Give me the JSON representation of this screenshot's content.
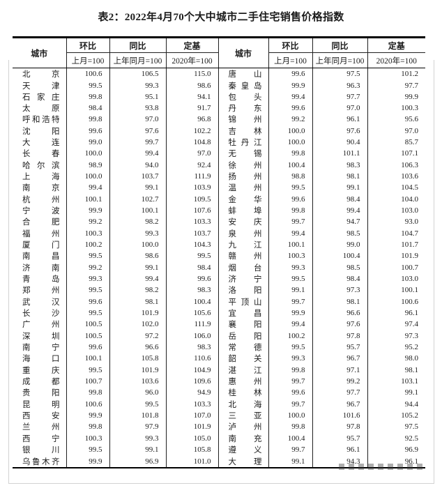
{
  "title": "表2：2022年4月70个大中城市二手住宅销售价格指数",
  "colors": {
    "border_strong": "#000000",
    "border_line": "#1f1f1f",
    "text": "#1b1b1b",
    "frame": "#d2d2d2"
  },
  "table": {
    "header": {
      "city_label": "城市",
      "columns": [
        {
          "group": "环比",
          "sub": "上月=100"
        },
        {
          "group": "同比",
          "sub": "上年同月=100"
        },
        {
          "group": "定基",
          "sub": "2020年=100"
        }
      ]
    },
    "left_rows": [
      {
        "city": "北京",
        "mom": "100.6",
        "yoy": "106.5",
        "base": "115.0"
      },
      {
        "city": "天津",
        "mom": "99.5",
        "yoy": "99.3",
        "base": "98.6"
      },
      {
        "city": "石家庄",
        "mom": "99.8",
        "yoy": "95.1",
        "base": "94.1"
      },
      {
        "city": "太原",
        "mom": "98.4",
        "yoy": "93.8",
        "base": "91.7"
      },
      {
        "city": "呼和浩特",
        "mom": "99.8",
        "yoy": "97.0",
        "base": "96.8"
      },
      {
        "city": "沈阳",
        "mom": "99.6",
        "yoy": "97.6",
        "base": "102.2"
      },
      {
        "city": "大连",
        "mom": "99.0",
        "yoy": "99.7",
        "base": "104.8"
      },
      {
        "city": "长春",
        "mom": "100.0",
        "yoy": "99.4",
        "base": "97.0"
      },
      {
        "city": "哈尔滨",
        "mom": "98.9",
        "yoy": "94.0",
        "base": "92.4"
      },
      {
        "city": "上海",
        "mom": "100.0",
        "yoy": "103.7",
        "base": "111.9"
      },
      {
        "city": "南京",
        "mom": "99.4",
        "yoy": "99.1",
        "base": "103.9"
      },
      {
        "city": "杭州",
        "mom": "100.1",
        "yoy": "102.7",
        "base": "109.5"
      },
      {
        "city": "宁波",
        "mom": "99.9",
        "yoy": "100.1",
        "base": "107.6"
      },
      {
        "city": "合肥",
        "mom": "99.2",
        "yoy": "98.2",
        "base": "103.3"
      },
      {
        "city": "福州",
        "mom": "100.3",
        "yoy": "99.3",
        "base": "103.7"
      },
      {
        "city": "厦门",
        "mom": "100.2",
        "yoy": "100.0",
        "base": "104.3"
      },
      {
        "city": "南昌",
        "mom": "99.5",
        "yoy": "98.6",
        "base": "99.5"
      },
      {
        "city": "济南",
        "mom": "99.2",
        "yoy": "99.1",
        "base": "98.4"
      },
      {
        "city": "青岛",
        "mom": "99.3",
        "yoy": "99.4",
        "base": "99.6"
      },
      {
        "city": "郑州",
        "mom": "99.5",
        "yoy": "98.2",
        "base": "98.3"
      },
      {
        "city": "武汉",
        "mom": "99.6",
        "yoy": "98.1",
        "base": "100.4"
      },
      {
        "city": "长沙",
        "mom": "99.5",
        "yoy": "101.9",
        "base": "105.6"
      },
      {
        "city": "广州",
        "mom": "100.5",
        "yoy": "102.0",
        "base": "111.9"
      },
      {
        "city": "深圳",
        "mom": "100.5",
        "yoy": "97.2",
        "base": "106.0"
      },
      {
        "city": "南宁",
        "mom": "99.6",
        "yoy": "96.6",
        "base": "98.3"
      },
      {
        "city": "海口",
        "mom": "100.1",
        "yoy": "105.8",
        "base": "110.6"
      },
      {
        "city": "重庆",
        "mom": "99.5",
        "yoy": "101.9",
        "base": "104.9"
      },
      {
        "city": "成都",
        "mom": "100.7",
        "yoy": "103.6",
        "base": "109.6"
      },
      {
        "city": "贵阳",
        "mom": "99.8",
        "yoy": "96.0",
        "base": "94.9"
      },
      {
        "city": "昆明",
        "mom": "100.6",
        "yoy": "99.5",
        "base": "103.3"
      },
      {
        "city": "西安",
        "mom": "99.9",
        "yoy": "101.8",
        "base": "107.0"
      },
      {
        "city": "兰州",
        "mom": "99.8",
        "yoy": "97.9",
        "base": "101.9"
      },
      {
        "city": "西宁",
        "mom": "100.3",
        "yoy": "99.3",
        "base": "105.0"
      },
      {
        "city": "银川",
        "mom": "99.5",
        "yoy": "99.1",
        "base": "105.8"
      },
      {
        "city": "乌鲁木齐",
        "mom": "99.9",
        "yoy": "96.9",
        "base": "101.0"
      }
    ],
    "right_rows": [
      {
        "city": "唐山",
        "mom": "99.6",
        "yoy": "97.5",
        "base": "101.2"
      },
      {
        "city": "秦皇岛",
        "mom": "99.9",
        "yoy": "96.3",
        "base": "97.7"
      },
      {
        "city": "包头",
        "mom": "99.4",
        "yoy": "97.7",
        "base": "99.9"
      },
      {
        "city": "丹东",
        "mom": "99.6",
        "yoy": "97.0",
        "base": "100.3"
      },
      {
        "city": "锦州",
        "mom": "99.2",
        "yoy": "96.1",
        "base": "95.6"
      },
      {
        "city": "吉林",
        "mom": "100.0",
        "yoy": "97.6",
        "base": "97.0"
      },
      {
        "city": "牡丹江",
        "mom": "100.0",
        "yoy": "90.4",
        "base": "85.7"
      },
      {
        "city": "无锡",
        "mom": "99.8",
        "yoy": "101.1",
        "base": "107.1"
      },
      {
        "city": "徐州",
        "mom": "100.4",
        "yoy": "98.3",
        "base": "106.3"
      },
      {
        "city": "扬州",
        "mom": "98.8",
        "yoy": "98.1",
        "base": "103.6"
      },
      {
        "city": "温州",
        "mom": "99.5",
        "yoy": "99.1",
        "base": "104.5"
      },
      {
        "city": "金华",
        "mom": "99.6",
        "yoy": "98.4",
        "base": "104.0"
      },
      {
        "city": "蚌埠",
        "mom": "99.8",
        "yoy": "99.4",
        "base": "103.0"
      },
      {
        "city": "安庆",
        "mom": "99.7",
        "yoy": "94.7",
        "base": "93.0"
      },
      {
        "city": "泉州",
        "mom": "99.4",
        "yoy": "98.5",
        "base": "104.7"
      },
      {
        "city": "九江",
        "mom": "100.1",
        "yoy": "99.0",
        "base": "101.7"
      },
      {
        "city": "赣州",
        "mom": "100.3",
        "yoy": "100.4",
        "base": "101.9"
      },
      {
        "city": "烟台",
        "mom": "99.3",
        "yoy": "98.5",
        "base": "100.7"
      },
      {
        "city": "济宁",
        "mom": "99.5",
        "yoy": "98.4",
        "base": "103.0"
      },
      {
        "city": "洛阳",
        "mom": "99.1",
        "yoy": "97.3",
        "base": "100.1"
      },
      {
        "city": "平顶山",
        "mom": "99.7",
        "yoy": "98.1",
        "base": "100.6"
      },
      {
        "city": "宜昌",
        "mom": "99.9",
        "yoy": "96.6",
        "base": "96.1"
      },
      {
        "city": "襄阳",
        "mom": "99.4",
        "yoy": "97.6",
        "base": "97.4"
      },
      {
        "city": "岳阳",
        "mom": "100.2",
        "yoy": "97.8",
        "base": "97.3"
      },
      {
        "city": "常德",
        "mom": "99.5",
        "yoy": "95.7",
        "base": "95.2"
      },
      {
        "city": "韶关",
        "mom": "99.3",
        "yoy": "96.7",
        "base": "98.0"
      },
      {
        "city": "湛江",
        "mom": "99.8",
        "yoy": "97.1",
        "base": "98.1"
      },
      {
        "city": "惠州",
        "mom": "99.7",
        "yoy": "99.2",
        "base": "103.1"
      },
      {
        "city": "桂林",
        "mom": "99.6",
        "yoy": "97.7",
        "base": "99.1"
      },
      {
        "city": "北海",
        "mom": "99.7",
        "yoy": "96.7",
        "base": "94.4"
      },
      {
        "city": "三亚",
        "mom": "100.0",
        "yoy": "101.6",
        "base": "105.2"
      },
      {
        "city": "泸州",
        "mom": "99.8",
        "yoy": "97.8",
        "base": "97.5"
      },
      {
        "city": "南充",
        "mom": "100.4",
        "yoy": "95.7",
        "base": "92.5"
      },
      {
        "city": "遵义",
        "mom": "99.7",
        "yoy": "96.1",
        "base": "96.9"
      },
      {
        "city": "大理",
        "mom": "99.1",
        "yoy": "94.3",
        "base": "96.1"
      }
    ]
  }
}
